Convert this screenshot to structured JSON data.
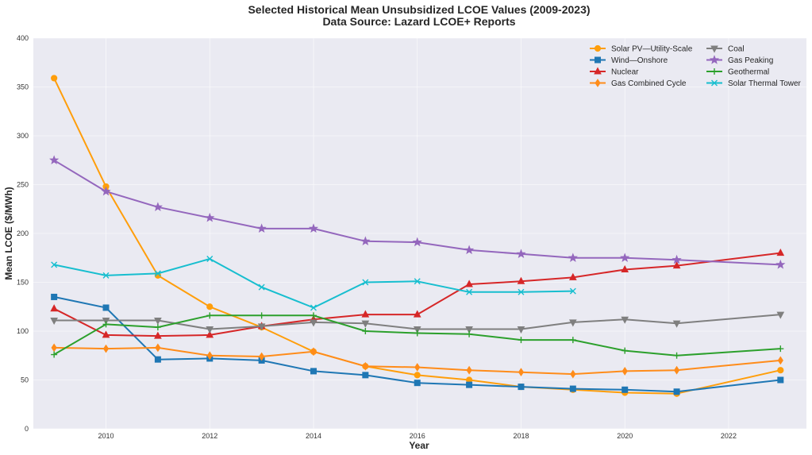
{
  "chart_data": {
    "type": "line",
    "title": "Selected Historical Mean Unsubsidized LCOE Values (2009-2023)",
    "subtitle": "Data Source: Lazard LCOE+ Reports",
    "xlabel": "Year",
    "ylabel": "Mean LCOE ($/MWh)",
    "xlim": [
      2008.6,
      2023.5
    ],
    "ylim": [
      0,
      400
    ],
    "xticks": [
      2010,
      2012,
      2014,
      2016,
      2018,
      2020,
      2022
    ],
    "yticks": [
      0,
      50,
      100,
      150,
      200,
      250,
      300,
      350,
      400
    ],
    "grid": true,
    "legend_position": "top-right",
    "series": [
      {
        "name": "Solar PV—Utility-Scale",
        "color": "#ff9e0b",
        "marker": "circle",
        "x": [
          2009,
          2010,
          2011,
          2012,
          2013,
          2014,
          2015,
          2016,
          2017,
          2018,
          2019,
          2020,
          2021,
          2023
        ],
        "y": [
          359,
          248,
          157,
          125,
          104,
          79,
          64,
          55,
          50,
          43,
          40,
          37,
          36,
          60
        ]
      },
      {
        "name": "Wind—Onshore",
        "color": "#1f77b4",
        "marker": "square",
        "x": [
          2009,
          2010,
          2011,
          2012,
          2013,
          2014,
          2015,
          2016,
          2017,
          2018,
          2019,
          2020,
          2021,
          2023
        ],
        "y": [
          135,
          124,
          71,
          72,
          70,
          59,
          55,
          47,
          45,
          43,
          41,
          40,
          38,
          50
        ]
      },
      {
        "name": "Nuclear",
        "color": "#d62728",
        "marker": "triangle-up",
        "x": [
          2009,
          2010,
          2011,
          2012,
          2013,
          2014,
          2015,
          2016,
          2017,
          2018,
          2019,
          2020,
          2021,
          2023
        ],
        "y": [
          123,
          96,
          95,
          96,
          105,
          112,
          117,
          117,
          148,
          151,
          155,
          163,
          167,
          180
        ]
      },
      {
        "name": "Gas Combined Cycle",
        "color": "#ff8c1a",
        "marker": "diamond",
        "x": [
          2009,
          2010,
          2011,
          2012,
          2013,
          2014,
          2015,
          2016,
          2017,
          2018,
          2019,
          2020,
          2021,
          2023
        ],
        "y": [
          83,
          82,
          83,
          75,
          74,
          79,
          64,
          63,
          60,
          58,
          56,
          59,
          60,
          70
        ]
      },
      {
        "name": "Coal",
        "color": "#7f7f7f",
        "marker": "triangle-down",
        "x": [
          2009,
          2010,
          2011,
          2012,
          2013,
          2014,
          2015,
          2016,
          2017,
          2018,
          2019,
          2020,
          2021,
          2023
        ],
        "y": [
          111,
          111,
          111,
          102,
          105,
          109,
          108,
          102,
          102,
          102,
          109,
          112,
          108,
          117
        ]
      },
      {
        "name": "Gas Peaking",
        "color": "#9467bd",
        "marker": "star",
        "x": [
          2009,
          2010,
          2011,
          2012,
          2013,
          2014,
          2015,
          2016,
          2017,
          2018,
          2019,
          2020,
          2021,
          2023
        ],
        "y": [
          275,
          243,
          227,
          216,
          205,
          205,
          192,
          191,
          183,
          179,
          175,
          175,
          173,
          168
        ]
      },
      {
        "name": "Geothermal",
        "color": "#2ca02c",
        "marker": "plus",
        "x": [
          2009,
          2010,
          2011,
          2012,
          2013,
          2014,
          2015,
          2016,
          2017,
          2018,
          2019,
          2020,
          2021,
          2023
        ],
        "y": [
          76,
          107,
          104,
          116,
          116,
          116,
          100,
          98,
          97,
          91,
          91,
          80,
          75,
          82
        ]
      },
      {
        "name": "Solar Thermal Tower",
        "color": "#17becf",
        "marker": "x",
        "x": [
          2009,
          2010,
          2011,
          2012,
          2013,
          2014,
          2015,
          2016,
          2017,
          2018,
          2019
        ],
        "y": [
          168,
          157,
          159,
          174,
          145,
          124,
          150,
          151,
          140,
          140,
          141
        ]
      }
    ]
  }
}
